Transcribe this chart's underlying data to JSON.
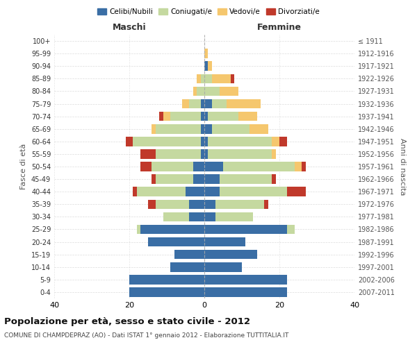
{
  "age_groups": [
    "100+",
    "95-99",
    "90-94",
    "85-89",
    "80-84",
    "75-79",
    "70-74",
    "65-69",
    "60-64",
    "55-59",
    "50-54",
    "45-49",
    "40-44",
    "35-39",
    "30-34",
    "25-29",
    "20-24",
    "15-19",
    "10-14",
    "5-9",
    "0-4"
  ],
  "birth_years": [
    "≤ 1911",
    "1912-1916",
    "1917-1921",
    "1922-1926",
    "1927-1931",
    "1932-1936",
    "1937-1941",
    "1942-1946",
    "1947-1951",
    "1952-1956",
    "1957-1961",
    "1962-1966",
    "1967-1971",
    "1972-1976",
    "1977-1981",
    "1982-1986",
    "1987-1991",
    "1992-1996",
    "1997-2001",
    "2002-2006",
    "2007-2011"
  ],
  "colors": {
    "celibi": "#3a6ea5",
    "coniugati": "#c5d9a0",
    "vedovi": "#f5c76e",
    "divorziati": "#c0392b"
  },
  "males": {
    "celibi": [
      0,
      0,
      0,
      0,
      0,
      1,
      1,
      1,
      1,
      1,
      3,
      3,
      5,
      4,
      4,
      17,
      15,
      8,
      9,
      20,
      20
    ],
    "coniugati": [
      0,
      0,
      0,
      1,
      2,
      3,
      8,
      12,
      18,
      12,
      11,
      10,
      13,
      9,
      7,
      1,
      0,
      0,
      0,
      0,
      0
    ],
    "vedovi": [
      0,
      0,
      0,
      1,
      1,
      2,
      2,
      1,
      0,
      0,
      0,
      0,
      0,
      0,
      0,
      0,
      0,
      0,
      0,
      0,
      0
    ],
    "divorziati": [
      0,
      0,
      0,
      0,
      0,
      0,
      1,
      0,
      2,
      4,
      3,
      1,
      1,
      2,
      0,
      0,
      0,
      0,
      0,
      0,
      0
    ]
  },
  "females": {
    "celibi": [
      0,
      0,
      1,
      0,
      0,
      2,
      1,
      2,
      1,
      1,
      5,
      4,
      4,
      3,
      3,
      22,
      11,
      14,
      10,
      22,
      22
    ],
    "coniugati": [
      0,
      0,
      0,
      2,
      4,
      4,
      8,
      10,
      17,
      17,
      19,
      14,
      18,
      13,
      10,
      2,
      0,
      0,
      0,
      0,
      0
    ],
    "vedovi": [
      0,
      1,
      1,
      5,
      5,
      9,
      5,
      5,
      2,
      1,
      2,
      0,
      0,
      0,
      0,
      0,
      0,
      0,
      0,
      0,
      0
    ],
    "divorziati": [
      0,
      0,
      0,
      1,
      0,
      0,
      0,
      0,
      2,
      0,
      1,
      1,
      5,
      1,
      0,
      0,
      0,
      0,
      0,
      0,
      0
    ]
  },
  "title": "Popolazione per età, sesso e stato civile - 2012",
  "subtitle": "COMUNE DI CHAMPDEPRAZ (AO) - Dati ISTAT 1° gennaio 2012 - Elaborazione TUTTITALIA.IT",
  "ylabel": "Fasce di età",
  "ylabel2": "Anni di nascita",
  "xlabel_left": "Maschi",
  "xlabel_right": "Femmine",
  "legend_labels": [
    "Celibi/Nubili",
    "Coniugati/e",
    "Vedovi/e",
    "Divorziati/e"
  ],
  "xlim": 40,
  "bg_color": "#ffffff",
  "grid_color": "#cccccc"
}
